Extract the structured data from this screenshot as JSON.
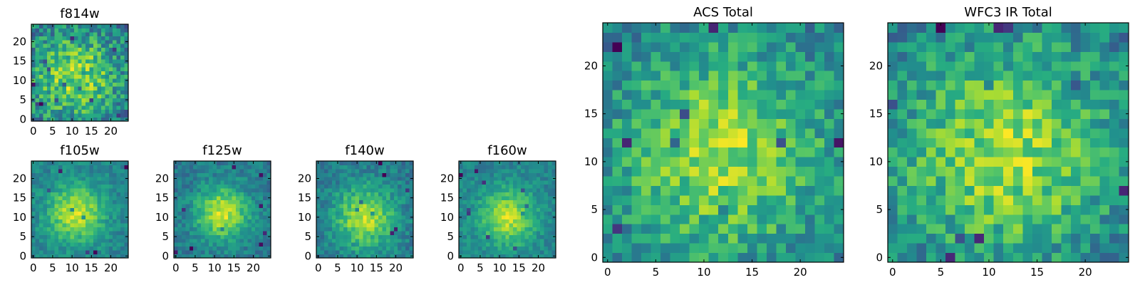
{
  "chart_data": {
    "type": "heatmap",
    "colormap": "viridis",
    "panels": [
      {
        "id": "f814w",
        "title": "f814w",
        "x_ticks": [
          "0",
          "5",
          "10",
          "15",
          "20"
        ],
        "y_ticks": [
          "0",
          "5",
          "10",
          "15",
          "20"
        ],
        "xlim": [
          -0.5,
          24.5
        ],
        "ylim": [
          -0.5,
          24.5
        ],
        "grid_size": 25,
        "center": [
          11,
          11
        ],
        "sigma": 8,
        "noise": 0.5,
        "seed": 814
      },
      {
        "id": "f105w",
        "title": "f105w",
        "x_ticks": [
          "0",
          "5",
          "10",
          "15",
          "20"
        ],
        "y_ticks": [
          "0",
          "5",
          "10",
          "15",
          "20"
        ],
        "xlim": [
          -0.5,
          24.5
        ],
        "ylim": [
          -0.5,
          24.5
        ],
        "grid_size": 25,
        "center": [
          11,
          11
        ],
        "sigma": 5,
        "noise": 0.22,
        "seed": 105
      },
      {
        "id": "f125w",
        "title": "f125w",
        "x_ticks": [
          "0",
          "5",
          "10",
          "15",
          "20"
        ],
        "y_ticks": [
          "0",
          "5",
          "10",
          "15",
          "20"
        ],
        "xlim": [
          -0.5,
          24.5
        ],
        "ylim": [
          -0.5,
          24.5
        ],
        "grid_size": 25,
        "center": [
          12,
          11
        ],
        "sigma": 5,
        "noise": 0.22,
        "seed": 125
      },
      {
        "id": "f140w",
        "title": "f140w",
        "x_ticks": [
          "0",
          "5",
          "10",
          "15",
          "20"
        ],
        "y_ticks": [
          "0",
          "5",
          "10",
          "15",
          "20"
        ],
        "xlim": [
          -0.5,
          24.5
        ],
        "ylim": [
          -0.5,
          24.5
        ],
        "grid_size": 25,
        "center": [
          12,
          10
        ],
        "sigma": 5.5,
        "noise": 0.25,
        "seed": 140
      },
      {
        "id": "f160w",
        "title": "f160w",
        "x_ticks": [
          "0",
          "5",
          "10",
          "15",
          "20"
        ],
        "y_ticks": [
          "0",
          "5",
          "10",
          "15",
          "20"
        ],
        "xlim": [
          -0.5,
          24.5
        ],
        "ylim": [
          -0.5,
          24.5
        ],
        "grid_size": 25,
        "center": [
          12,
          10
        ],
        "sigma": 5,
        "noise": 0.22,
        "seed": 160
      },
      {
        "id": "acs-total",
        "title": "ACS Total",
        "x_ticks": [
          "0",
          "5",
          "10",
          "15",
          "20"
        ],
        "y_ticks": [
          "0",
          "5",
          "10",
          "15",
          "20"
        ],
        "xlim": [
          -0.5,
          24.5
        ],
        "ylim": [
          -0.5,
          24.5
        ],
        "grid_size": 25,
        "center": [
          12,
          11
        ],
        "sigma": 8,
        "noise": 0.4,
        "seed": 777
      },
      {
        "id": "wfc3-ir-total",
        "title": "WFC3 IR Total",
        "x_ticks": [
          "0",
          "5",
          "10",
          "15",
          "20"
        ],
        "y_ticks": [
          "0",
          "5",
          "10",
          "15",
          "20"
        ],
        "xlim": [
          -0.5,
          24.5
        ],
        "ylim": [
          -0.5,
          24.5
        ],
        "grid_size": 25,
        "center": [
          12,
          11
        ],
        "sigma": 8,
        "noise": 0.4,
        "seed": 999
      }
    ]
  }
}
